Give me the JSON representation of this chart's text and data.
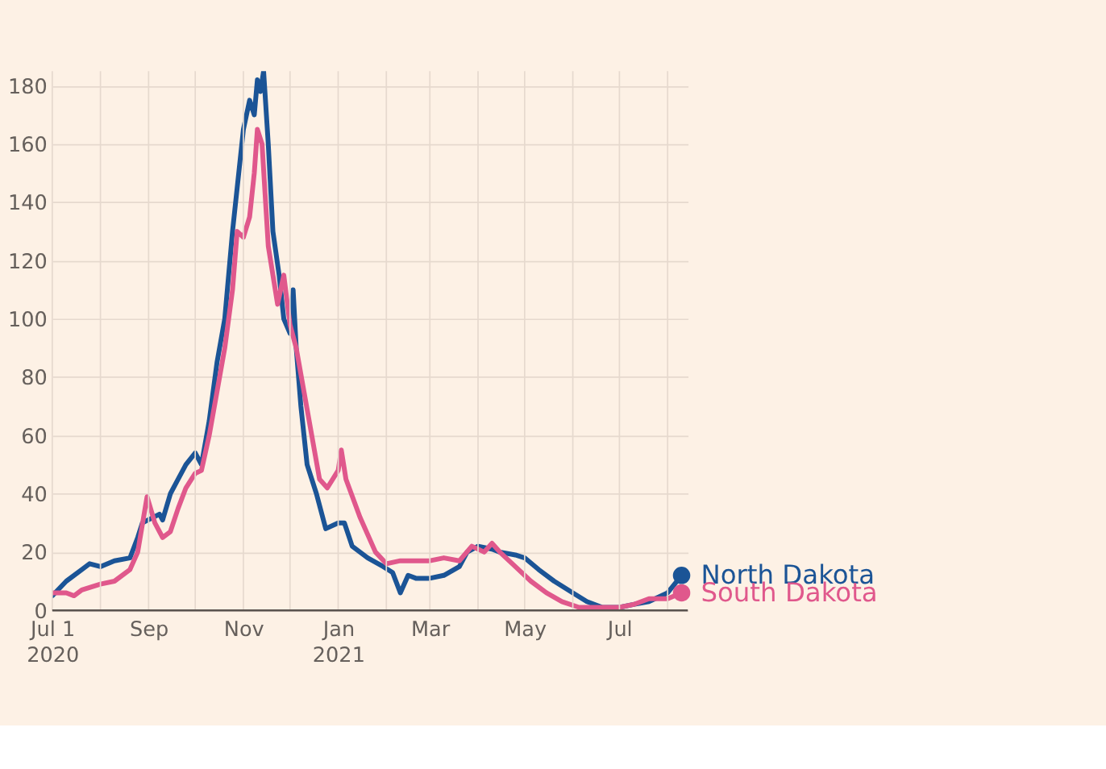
{
  "chart_data": {
    "type": "line",
    "x": [
      "2020-07-01",
      "2020-07-10",
      "2020-07-20",
      "2020-07-25",
      "2020-08-01",
      "2020-08-10",
      "2020-08-20",
      "2020-08-25",
      "2020-08-28",
      "2020-09-08",
      "2020-09-10",
      "2020-09-15",
      "2020-09-20",
      "2020-09-25",
      "2020-10-01",
      "2020-10-05",
      "2020-10-10",
      "2020-10-15",
      "2020-10-20",
      "2020-10-25",
      "2020-10-28",
      "2020-11-01",
      "2020-11-05",
      "2020-11-08",
      "2020-11-10",
      "2020-11-12",
      "2020-11-14",
      "2020-11-17",
      "2020-11-20",
      "2020-11-24",
      "2020-11-27",
      "2020-12-01",
      "2020-12-03",
      "2020-12-05",
      "2020-12-08",
      "2020-12-12",
      "2020-12-18",
      "2020-12-24",
      "2021-01-01",
      "2021-01-05",
      "2021-01-10",
      "2021-01-20",
      "2021-01-30",
      "2021-02-05",
      "2021-02-10",
      "2021-02-15",
      "2021-02-20",
      "2021-03-01",
      "2021-03-10",
      "2021-03-20",
      "2021-03-25",
      "2021-04-01",
      "2021-04-10",
      "2021-04-15",
      "2021-04-25",
      "2021-05-01",
      "2021-05-10",
      "2021-05-20",
      "2021-06-01",
      "2021-06-10",
      "2021-06-20",
      "2021-07-01",
      "2021-07-10",
      "2021-07-20",
      "2021-08-01",
      "2021-08-10"
    ],
    "series": [
      {
        "name": "North Dakota",
        "color": "#1b5496",
        "values": [
          5,
          10,
          14,
          16,
          15,
          17,
          18,
          25,
          30,
          33,
          31,
          40,
          45,
          50,
          54,
          50,
          65,
          85,
          100,
          130,
          145,
          165,
          175,
          170,
          182,
          178,
          185,
          160,
          130,
          115,
          100,
          95,
          110,
          90,
          70,
          50,
          40,
          28,
          30,
          30,
          22,
          18,
          15,
          13,
          6,
          12,
          11,
          11,
          12,
          15,
          20,
          22,
          21,
          20,
          19,
          18,
          14,
          10,
          6,
          3,
          1,
          1,
          2,
          3,
          6,
          12
        ]
      },
      {
        "name": "South Dakota",
        "color": "#e0588c",
        "x": [
          "2020-07-01",
          "2020-07-10",
          "2020-07-15",
          "2020-07-20",
          "2020-08-01",
          "2020-08-10",
          "2020-08-20",
          "2020-08-25",
          "2020-08-31",
          "2020-09-05",
          "2020-09-10",
          "2020-09-15",
          "2020-09-20",
          "2020-09-25",
          "2020-10-01",
          "2020-10-05",
          "2020-10-10",
          "2020-10-15",
          "2020-10-20",
          "2020-10-25",
          "2020-10-28",
          "2020-11-01",
          "2020-11-05",
          "2020-11-08",
          "2020-11-10",
          "2020-11-13",
          "2020-11-17",
          "2020-11-20",
          "2020-11-23",
          "2020-11-27",
          "2020-12-01",
          "2020-12-05",
          "2020-12-10",
          "2020-12-15",
          "2020-12-20",
          "2020-12-25",
          "2021-01-01",
          "2021-01-03",
          "2021-01-06",
          "2021-01-15",
          "2021-01-25",
          "2021-02-01",
          "2021-02-10",
          "2021-02-20",
          "2021-03-01",
          "2021-03-10",
          "2021-03-20",
          "2021-03-28",
          "2021-04-05",
          "2021-04-10",
          "2021-04-15",
          "2021-04-25",
          "2021-05-05",
          "2021-05-15",
          "2021-05-25",
          "2021-06-05",
          "2021-06-20",
          "2021-07-01",
          "2021-07-10",
          "2021-07-20",
          "2021-08-01",
          "2021-08-10"
        ],
        "values": [
          6,
          6,
          5,
          7,
          9,
          10,
          14,
          20,
          39,
          30,
          25,
          27,
          35,
          42,
          47,
          48,
          60,
          75,
          90,
          110,
          130,
          128,
          135,
          150,
          165,
          160,
          125,
          115,
          105,
          115,
          98,
          90,
          75,
          60,
          45,
          42,
          48,
          55,
          45,
          32,
          20,
          16,
          17,
          17,
          17,
          18,
          17,
          22,
          20,
          23,
          20,
          15,
          10,
          6,
          3,
          1,
          1,
          1,
          2,
          4,
          4,
          6
        ]
      }
    ],
    "xlim": [
      "2020-07-01",
      "2021-08-14"
    ],
    "xticks": [
      {
        "value": "2020-07-01",
        "label": "Jul 1\n2020"
      },
      {
        "value": "2020-08-01",
        "label": null
      },
      {
        "value": "2020-09-01",
        "label": "Sep"
      },
      {
        "value": "2020-10-01",
        "label": null
      },
      {
        "value": "2020-11-01",
        "label": "Nov"
      },
      {
        "value": "2020-12-01",
        "label": null
      },
      {
        "value": "2021-01-01",
        "label": "Jan\n2021"
      },
      {
        "value": "2021-02-01",
        "label": null
      },
      {
        "value": "2021-03-01",
        "label": "Mar"
      },
      {
        "value": "2021-04-01",
        "label": null
      },
      {
        "value": "2021-05-01",
        "label": "May"
      },
      {
        "value": "2021-06-01",
        "label": null
      },
      {
        "value": "2021-07-01",
        "label": "Jul"
      },
      {
        "value": "2021-08-01",
        "label": null
      }
    ],
    "ylim": [
      0,
      185
    ],
    "yticks": [
      0,
      20,
      40,
      60,
      80,
      100,
      120,
      140,
      160,
      180
    ],
    "grid": true
  }
}
